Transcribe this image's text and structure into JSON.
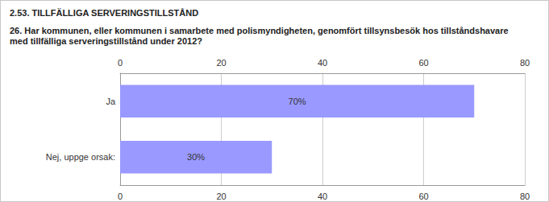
{
  "chart_data": {
    "type": "bar",
    "orientation": "horizontal",
    "title": "2.53. TILLFÄLLIGA SERVERINGSTILLSTÅND",
    "subtitle": "26. Har kommunen, eller kommunen i samarbete med polismyndigheten, genomfört tillsynsbesök hos tillståndshavare med tillfälliga serveringstillstånd under 2012?",
    "categories": [
      "Ja",
      "Nej, uppge orsak:"
    ],
    "values": [
      70,
      30
    ],
    "value_labels": [
      "70%",
      "30%"
    ],
    "data_labels": true,
    "color": "#9999ff",
    "xlim": [
      0,
      80
    ],
    "xticks": [
      0,
      20,
      40,
      60,
      80
    ],
    "grid": true
  }
}
